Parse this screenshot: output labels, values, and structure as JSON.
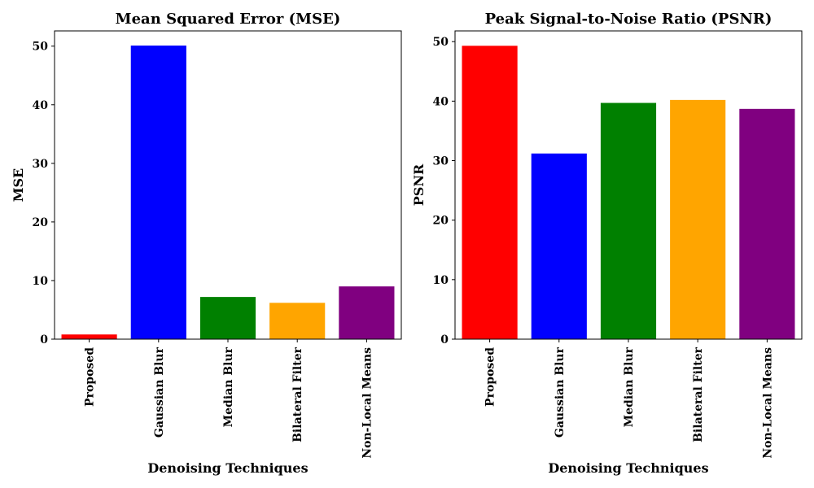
{
  "chart_data": [
    {
      "type": "bar",
      "title": "Mean Squared Error (MSE)",
      "xlabel": "Denoising Techniques",
      "ylabel": "MSE",
      "categories": [
        "Proposed",
        "Gaussian Blur",
        "Median Blur",
        "Bilateral Filter",
        "Non-Local Means"
      ],
      "values": [
        0.8,
        50.1,
        7.2,
        6.2,
        9.0
      ],
      "colors": [
        "#ff0000",
        "#0000ff",
        "#008000",
        "#ffa500",
        "#800080"
      ],
      "ylim": [
        0,
        52.6
      ],
      "yticks": [
        0,
        10,
        20,
        30,
        40,
        50
      ],
      "grid": false
    },
    {
      "type": "bar",
      "title": "Peak Signal-to-Noise Ratio (PSNR)",
      "xlabel": "Denoising Techniques",
      "ylabel": "PSNR",
      "categories": [
        "Proposed",
        "Gaussian Blur",
        "Median Blur",
        "Bilateral Filter",
        "Non-Local Means"
      ],
      "values": [
        49.3,
        31.2,
        39.7,
        40.2,
        38.7
      ],
      "colors": [
        "#ff0000",
        "#0000ff",
        "#008000",
        "#ffa500",
        "#800080"
      ],
      "ylim": [
        0,
        51.8
      ],
      "yticks": [
        0,
        10,
        20,
        30,
        40,
        50
      ],
      "grid": false
    }
  ]
}
